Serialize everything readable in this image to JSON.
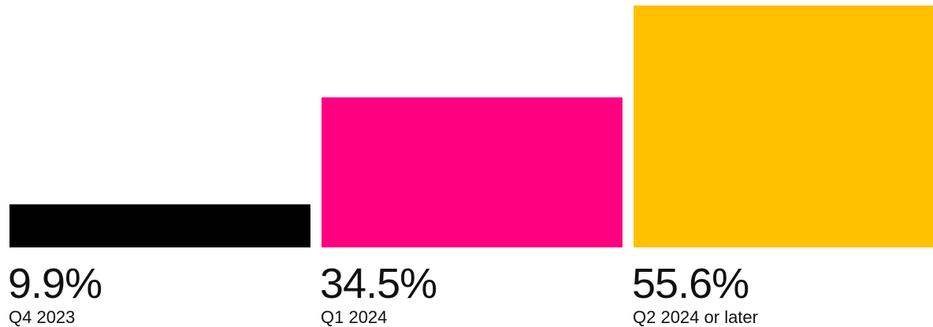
{
  "chart_data": {
    "type": "bar",
    "categories": [
      "Q4 2023",
      "Q1 2024",
      "Q2 2024 or later"
    ],
    "values": [
      9.9,
      34.5,
      55.6
    ],
    "value_labels": [
      "9.9%",
      "34.5%",
      "55.6%"
    ],
    "colors": [
      "#000000",
      "#ff0080",
      "#ffc000"
    ],
    "title": "",
    "xlabel": "",
    "ylabel": "",
    "ylim": [
      0,
      55.6
    ],
    "grid": false,
    "legend": "none"
  }
}
